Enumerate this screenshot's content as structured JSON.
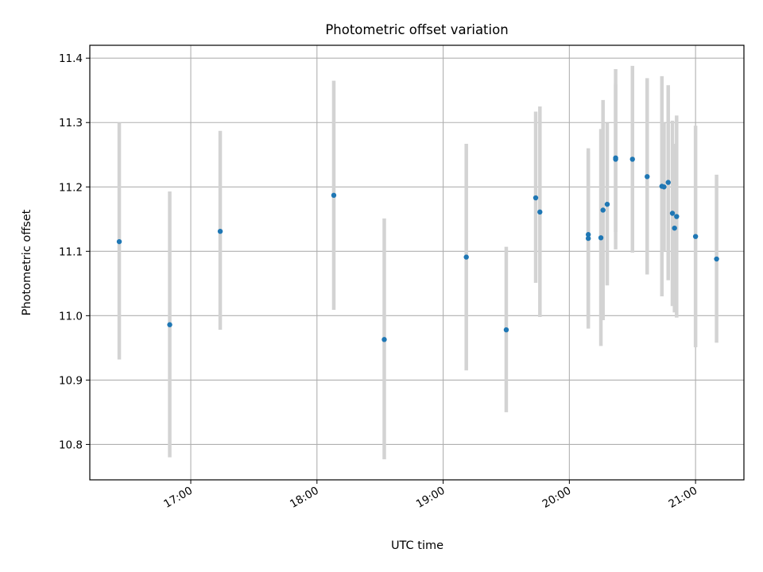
{
  "chart_data": {
    "type": "scatter",
    "title": "Photometric offset variation",
    "xlabel": "UTC time",
    "ylabel": "Photometric offset",
    "grid": true,
    "colors": {
      "point": "#1f77b4",
      "errorbar": "#d3d3d3"
    },
    "x_axis": {
      "kind": "time",
      "range": [
        "16:12",
        "21:23"
      ],
      "ticks": [
        "17:00",
        "18:00",
        "19:00",
        "20:00",
        "21:00"
      ],
      "tick_label_rotation_deg": 30
    },
    "y_axis": {
      "range": [
        10.745,
        11.42
      ],
      "ticks": [
        10.8,
        10.9,
        11.0,
        11.1,
        11.2,
        11.3,
        11.4
      ],
      "tick_labels": [
        "10.8",
        "10.9",
        "11.0",
        "11.1",
        "11.2",
        "11.3",
        "11.4"
      ]
    },
    "points": [
      {
        "x": "16:26",
        "y": 11.115,
        "ylo": 10.932,
        "yhi": 11.3
      },
      {
        "x": "16:50",
        "y": 10.986,
        "ylo": 10.78,
        "yhi": 11.193
      },
      {
        "x": "17:14",
        "y": 11.131,
        "ylo": 10.978,
        "yhi": 11.287
      },
      {
        "x": "18:08",
        "y": 11.187,
        "ylo": 11.009,
        "yhi": 11.365
      },
      {
        "x": "18:32",
        "y": 10.963,
        "ylo": 10.777,
        "yhi": 11.151
      },
      {
        "x": "19:11",
        "y": 11.091,
        "ylo": 10.915,
        "yhi": 11.267
      },
      {
        "x": "19:30",
        "y": 10.978,
        "ylo": 10.85,
        "yhi": 11.107
      },
      {
        "x": "19:44",
        "y": 11.183,
        "ylo": 11.051,
        "yhi": 11.317
      },
      {
        "x": "19:46",
        "y": 11.161,
        "ylo": 10.998,
        "yhi": 11.325
      },
      {
        "x": "20:09",
        "y": 11.126,
        "ylo": 10.995,
        "yhi": 11.255
      },
      {
        "x": "20:09",
        "y": 11.12,
        "ylo": 10.98,
        "yhi": 11.26
      },
      {
        "x": "20:15",
        "y": 11.121,
        "ylo": 10.953,
        "yhi": 11.29
      },
      {
        "x": "20:16",
        "y": 11.164,
        "ylo": 10.993,
        "yhi": 11.335
      },
      {
        "x": "20:18",
        "y": 11.173,
        "ylo": 11.047,
        "yhi": 11.3
      },
      {
        "x": "20:22",
        "y": 11.243,
        "ylo": 11.103,
        "yhi": 11.383
      },
      {
        "x": "20:22",
        "y": 11.245,
        "ylo": 11.13,
        "yhi": 11.36
      },
      {
        "x": "20:30",
        "y": 11.243,
        "ylo": 11.098,
        "yhi": 11.388
      },
      {
        "x": "20:37",
        "y": 11.216,
        "ylo": 11.064,
        "yhi": 11.369
      },
      {
        "x": "20:44",
        "y": 11.201,
        "ylo": 11.03,
        "yhi": 11.372
      },
      {
        "x": "20:45",
        "y": 11.2,
        "ylo": 11.1,
        "yhi": 11.3
      },
      {
        "x": "20:47",
        "y": 11.207,
        "ylo": 11.055,
        "yhi": 11.358
      },
      {
        "x": "20:49",
        "y": 11.159,
        "ylo": 11.015,
        "yhi": 11.303
      },
      {
        "x": "20:50",
        "y": 11.136,
        "ylo": 11.005,
        "yhi": 11.267
      },
      {
        "x": "20:51",
        "y": 11.154,
        "ylo": 10.997,
        "yhi": 11.311
      },
      {
        "x": "21:00",
        "y": 11.123,
        "ylo": 10.951,
        "yhi": 11.295
      },
      {
        "x": "21:10",
        "y": 11.088,
        "ylo": 10.958,
        "yhi": 11.219
      }
    ]
  }
}
